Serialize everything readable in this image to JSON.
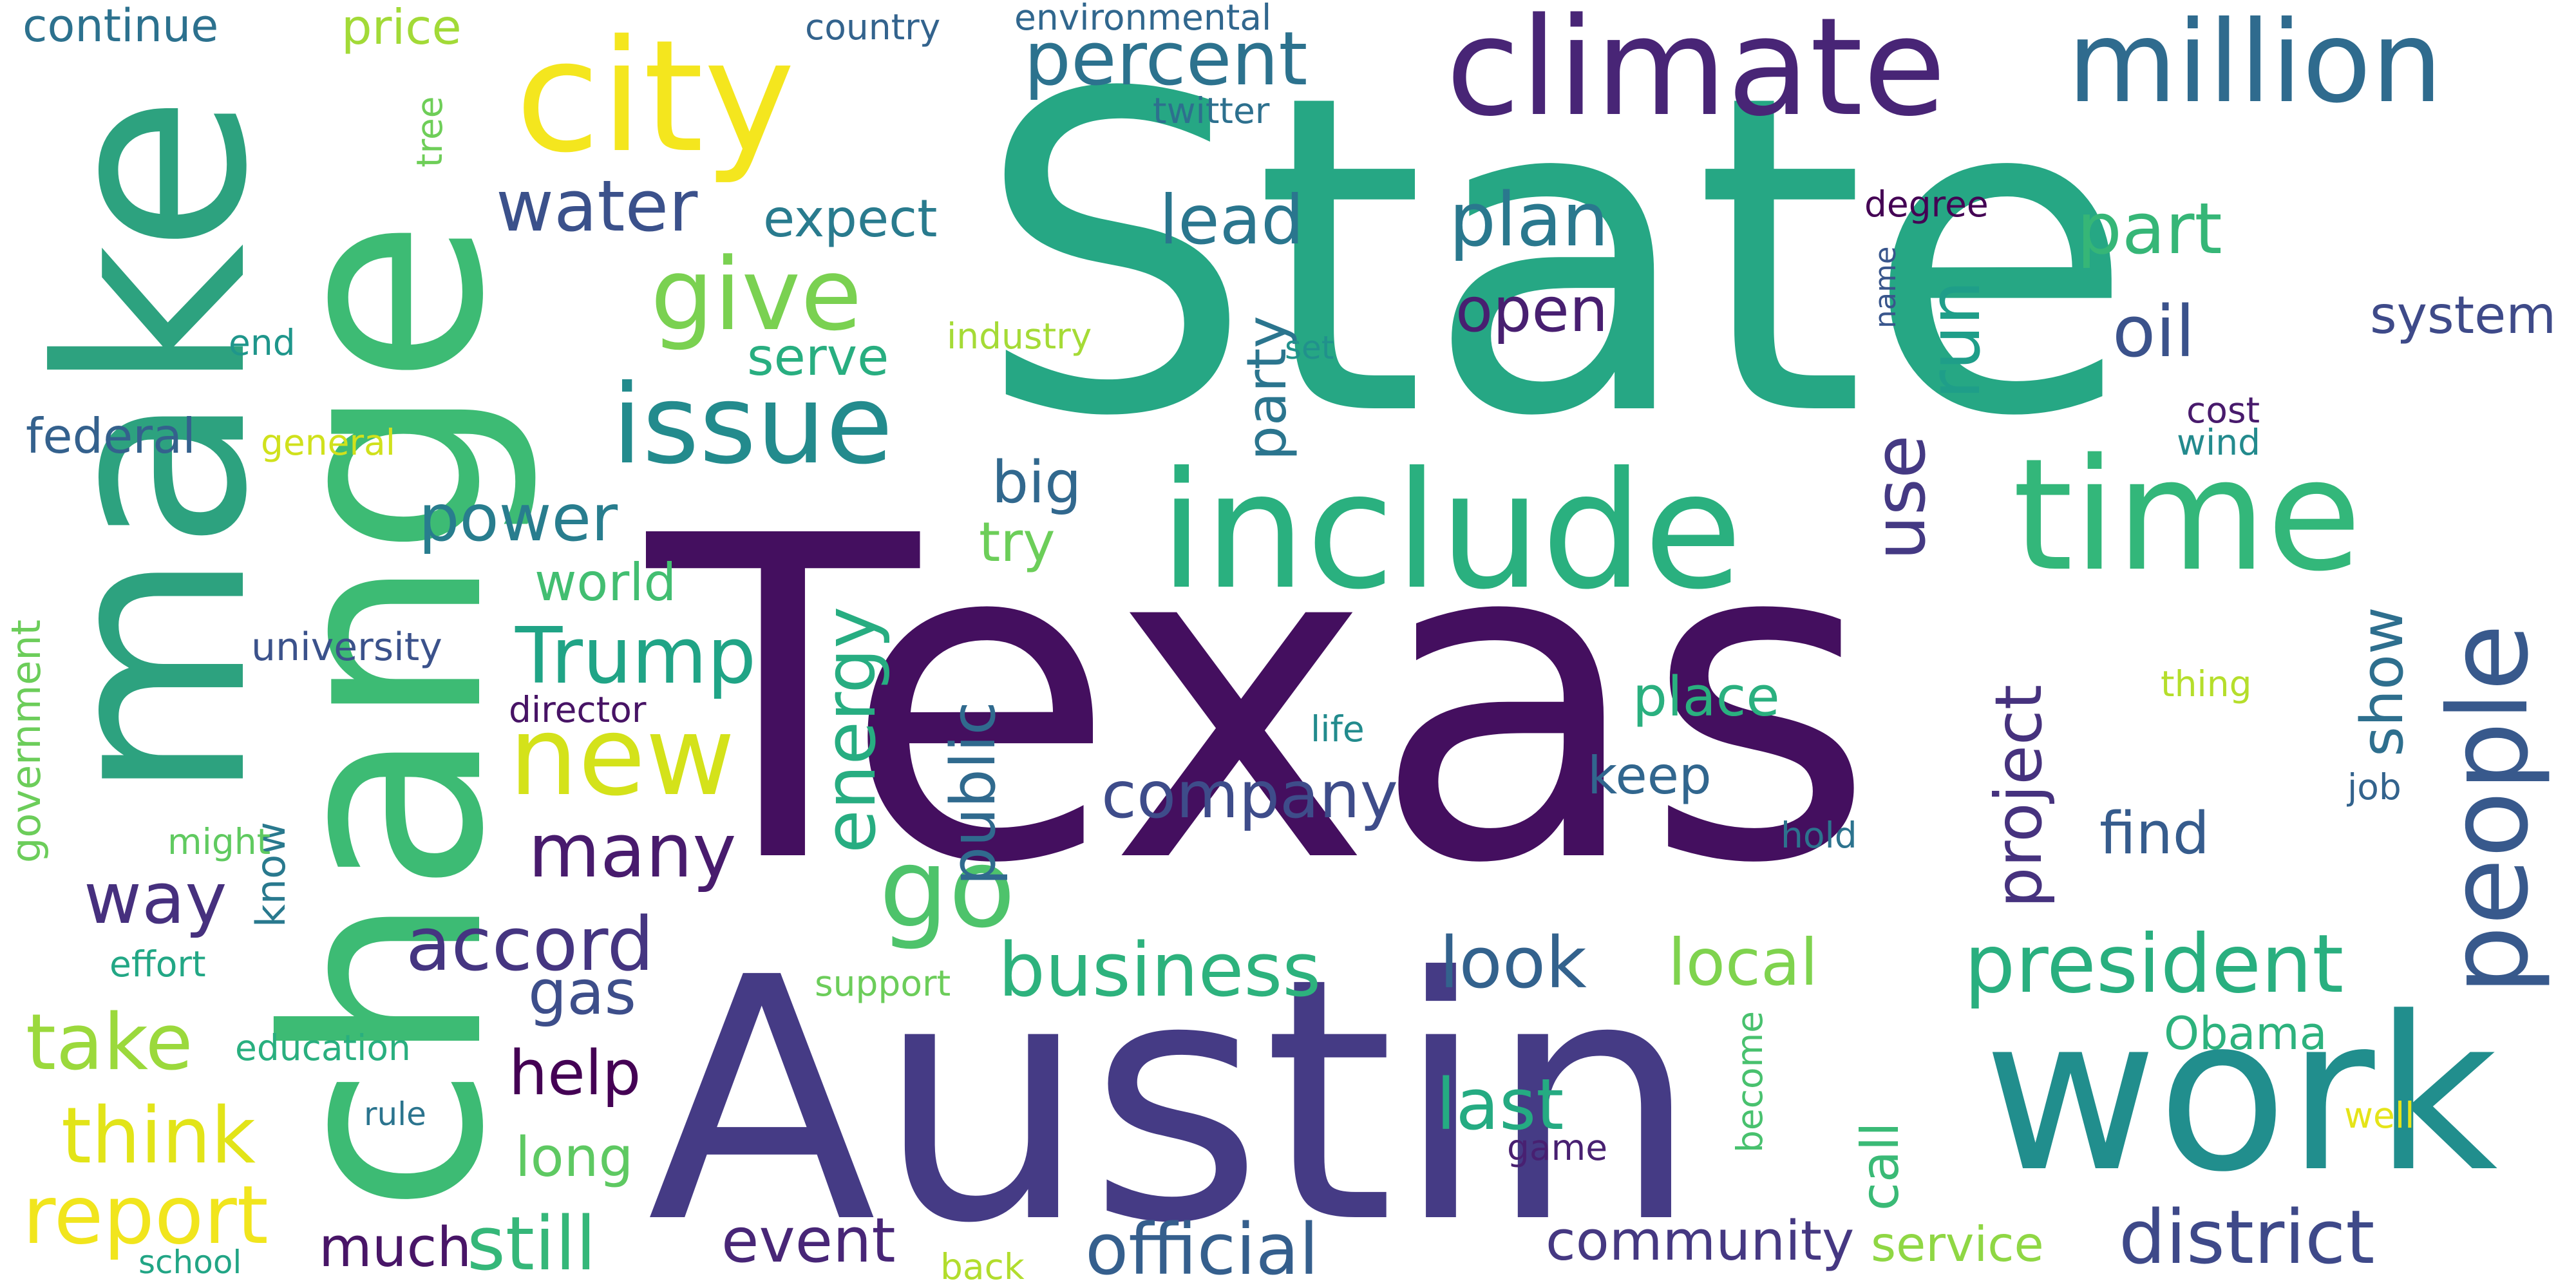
{
  "words": [
    {
      "text": "State",
      "color": "#26a784"
    },
    {
      "text": "Texas",
      "color": "#440f5f"
    },
    {
      "text": "Austin",
      "color": "#453b85"
    },
    {
      "text": "change",
      "color": "#3dbb74"
    },
    {
      "text": "make",
      "color": "#2da27f"
    },
    {
      "text": "work",
      "color": "#218e8d"
    },
    {
      "text": "include",
      "color": "#2ab07f"
    },
    {
      "text": "climate",
      "color": "#482576"
    },
    {
      "text": "million",
      "color": "#2f6b8e"
    },
    {
      "text": "time",
      "color": "#33b77a"
    },
    {
      "text": "people",
      "color": "#38598c"
    },
    {
      "text": "city",
      "color": "#f4e61e"
    },
    {
      "text": "issue",
      "color": "#238b8d"
    },
    {
      "text": "new",
      "color": "#d4e21a"
    },
    {
      "text": "go",
      "color": "#4ec36b"
    },
    {
      "text": "give",
      "color": "#7ad151"
    },
    {
      "text": "percent",
      "color": "#2c728e"
    },
    {
      "text": "water",
      "color": "#3b518b"
    },
    {
      "text": "Trump",
      "color": "#20a486"
    },
    {
      "text": "energy",
      "color": "#27ad81"
    },
    {
      "text": "president",
      "color": "#29af7f"
    },
    {
      "text": "business",
      "color": "#2db27d"
    },
    {
      "text": "district",
      "color": "#3e4989"
    },
    {
      "text": "official",
      "color": "#355f8d"
    },
    {
      "text": "report",
      "color": "#f1e51d"
    },
    {
      "text": "take",
      "color": "#9bd93c"
    },
    {
      "text": "think",
      "color": "#e2e418"
    },
    {
      "text": "still",
      "color": "#35b779"
    },
    {
      "text": "accord",
      "color": "#453581"
    },
    {
      "text": "plan",
      "color": "#2a788e"
    },
    {
      "text": "lead",
      "color": "#2a768e"
    },
    {
      "text": "oil",
      "color": "#3b528b"
    },
    {
      "text": "part",
      "color": "#36b677"
    },
    {
      "text": "run",
      "color": "#1f9e89"
    },
    {
      "text": "use",
      "color": "#443983"
    },
    {
      "text": "open",
      "color": "#481f70"
    },
    {
      "text": "many",
      "color": "#481b6d"
    },
    {
      "text": "way",
      "color": "#46307e"
    },
    {
      "text": "power",
      "color": "#287d8e"
    },
    {
      "text": "world",
      "color": "#42be71"
    },
    {
      "text": "company",
      "color": "#3e4c8a"
    },
    {
      "text": "look",
      "color": "#33628d"
    },
    {
      "text": "local",
      "color": "#7fd34e"
    },
    {
      "text": "last",
      "color": "#25ab82"
    },
    {
      "text": "project",
      "color": "#46327e"
    },
    {
      "text": "public",
      "color": "#306a8e"
    },
    {
      "text": "party",
      "color": "#2b758e"
    },
    {
      "text": "big",
      "color": "#31688e"
    },
    {
      "text": "try",
      "color": "#6cce59"
    },
    {
      "text": "expect",
      "color": "#297b8e"
    },
    {
      "text": "serve",
      "color": "#28ae80"
    },
    {
      "text": "place",
      "color": "#2ab07f"
    },
    {
      "text": "keep",
      "color": "#31668e"
    },
    {
      "text": "find",
      "color": "#365c8d"
    },
    {
      "text": "show",
      "color": "#2e6f8e"
    },
    {
      "text": "gas",
      "color": "#3d4e8a"
    },
    {
      "text": "help",
      "color": "#440154"
    },
    {
      "text": "long",
      "color": "#5ec962"
    },
    {
      "text": "much",
      "color": "#481567"
    },
    {
      "text": "event",
      "color": "#482677"
    },
    {
      "text": "community",
      "color": "#453882"
    },
    {
      "text": "system",
      "color": "#3e4a89"
    },
    {
      "text": "Obama",
      "color": "#2db27d"
    },
    {
      "text": "service",
      "color": "#8fd744"
    },
    {
      "text": "call",
      "color": "#3aba76"
    },
    {
      "text": "federal",
      "color": "#34618d"
    },
    {
      "text": "continue",
      "color": "#2c718e"
    },
    {
      "text": "price",
      "color": "#a2da37"
    },
    {
      "text": "country",
      "color": "#33638d"
    },
    {
      "text": "environmental",
      "color": "#31678e"
    },
    {
      "text": "twitter",
      "color": "#2d708e"
    },
    {
      "text": "tree",
      "color": "#6ece58"
    },
    {
      "text": "degree",
      "color": "#440154"
    },
    {
      "text": "name",
      "color": "#39568c"
    },
    {
      "text": "industry",
      "color": "#a5db36"
    },
    {
      "text": "set",
      "color": "#21918c"
    },
    {
      "text": "end",
      "color": "#1f968b"
    },
    {
      "text": "general",
      "color": "#d0e11c"
    },
    {
      "text": "cost",
      "color": "#481a6c"
    },
    {
      "text": "wind",
      "color": "#238a8d"
    },
    {
      "text": "university",
      "color": "#3b528b"
    },
    {
      "text": "director",
      "color": "#471365"
    },
    {
      "text": "government",
      "color": "#6ccd5a"
    },
    {
      "text": "know",
      "color": "#29798e"
    },
    {
      "text": "might",
      "color": "#60ca60"
    },
    {
      "text": "effort",
      "color": "#22a785"
    },
    {
      "text": "education",
      "color": "#29af7f"
    },
    {
      "text": "rule",
      "color": "#2b748e"
    },
    {
      "text": "school",
      "color": "#21a585"
    },
    {
      "text": "back",
      "color": "#b2dd2d"
    },
    {
      "text": "support",
      "color": "#6ccd5a"
    },
    {
      "text": "life",
      "color": "#228b8d"
    },
    {
      "text": "hold",
      "color": "#2c738e"
    },
    {
      "text": "thing",
      "color": "#b5de2b"
    },
    {
      "text": "job",
      "color": "#33638d"
    },
    {
      "text": "become",
      "color": "#48c16e"
    },
    {
      "text": "game",
      "color": "#482071"
    },
    {
      "text": "well",
      "color": "#e5e419"
    }
  ]
}
